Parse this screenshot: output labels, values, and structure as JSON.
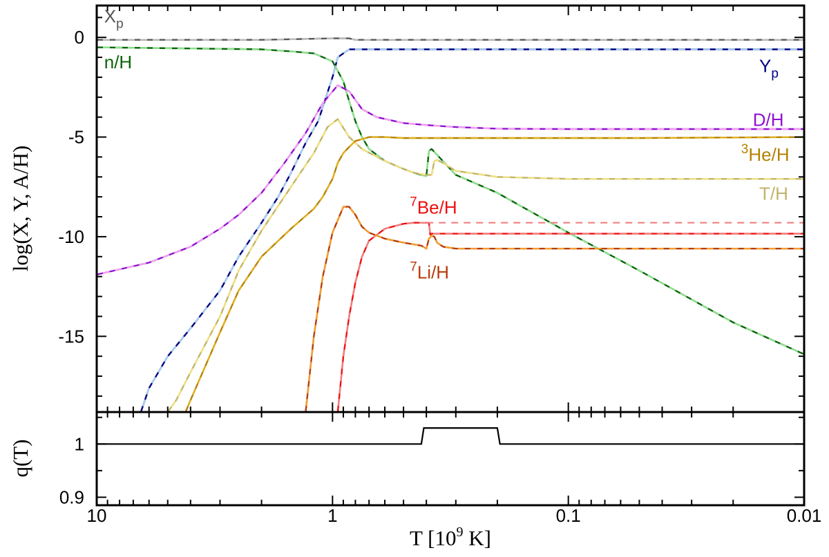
{
  "chart_data": [
    {
      "type": "line",
      "panel": "abundances",
      "ylabel": "log(X, Y, A/H)",
      "xscale": "log",
      "xlim": [
        10,
        0.01
      ],
      "ylim": [
        -18.8,
        1.6
      ],
      "x_ticks": [
        10,
        1,
        0.1,
        0.01
      ],
      "x_tick_labels": [
        "10",
        "1",
        "0.1",
        "0.01"
      ],
      "y_ticks": [
        0,
        -5,
        -10,
        -15
      ],
      "y_tick_labels": [
        "0",
        "-5",
        "-10",
        "-15"
      ],
      "grid": false,
      "series": [
        {
          "name": "X_p",
          "label": "X",
          "label_sub": "p",
          "color": "#555555",
          "ref_color": "#bbbbbb",
          "T": [
            10,
            2,
            1,
            0.85,
            0.8,
            0.01
          ],
          "val": [
            -0.12,
            -0.12,
            -0.05,
            -0.05,
            -0.12,
            -0.12
          ]
        },
        {
          "name": "Y_p",
          "label": "Y",
          "label_sub": "p",
          "color": "#000080",
          "ref_color": "#a8d0f0",
          "T": [
            6.5,
            6,
            5,
            4,
            3,
            2.5,
            2,
            1.7,
            1.5,
            1.3,
            1.15,
            1.0,
            0.95,
            0.9,
            0.85,
            0.8,
            0.01
          ],
          "val": [
            -18.8,
            -17.6,
            -16.0,
            -14.6,
            -12.7,
            -11.0,
            -9.3,
            -8.0,
            -6.8,
            -5.3,
            -4.2,
            -2.0,
            -1.0,
            -0.8,
            -0.6,
            -0.6,
            -0.6
          ]
        },
        {
          "name": "n/H",
          "label": "n/H",
          "color": "#0a640a",
          "ref_color": "#90e090",
          "T": [
            10,
            2,
            1.5,
            1.2,
            1.0,
            0.9,
            0.85,
            0.8,
            0.75,
            0.7,
            0.6,
            0.5,
            0.45,
            0.42,
            0.4,
            0.39,
            0.385,
            0.38,
            0.36,
            0.3,
            0.2,
            0.1,
            0.05,
            0.02,
            0.01
          ],
          "val": [
            -0.5,
            -0.6,
            -0.7,
            -0.8,
            -1.2,
            -2.2,
            -3.2,
            -4.2,
            -5.0,
            -5.6,
            -6.2,
            -6.6,
            -6.8,
            -6.9,
            -6.95,
            -5.7,
            -5.65,
            -5.6,
            -5.9,
            -6.9,
            -7.8,
            -9.8,
            -11.7,
            -14.3,
            -15.9
          ]
        },
        {
          "name": "D/H",
          "label": "D/H",
          "color": "#9010d0",
          "ref_color": "#f0a0f0",
          "T": [
            10,
            6,
            4,
            3,
            2.5,
            2,
            1.6,
            1.3,
            1.1,
            0.95,
            0.85,
            0.75,
            0.65,
            0.5,
            0.4,
            0.3,
            0.2,
            0.1,
            0.01
          ],
          "val": [
            -11.9,
            -11.3,
            -10.5,
            -9.6,
            -8.9,
            -7.8,
            -6.3,
            -4.8,
            -3.3,
            -2.4,
            -2.7,
            -3.6,
            -4.0,
            -4.3,
            -4.4,
            -4.5,
            -4.58,
            -4.6,
            -4.6
          ]
        },
        {
          "name": "T/H",
          "label": "T/H",
          "color": "#c0b468",
          "ref_color": "#f0e080",
          "T": [
            5,
            4.6,
            4,
            3,
            2.5,
            2,
            1.5,
            1.2,
            1.05,
            0.95,
            0.85,
            0.75,
            0.6,
            0.5,
            0.45,
            0.4,
            0.38,
            0.37,
            0.36,
            0.34,
            0.3,
            0.2,
            0.1,
            0.01
          ],
          "val": [
            -18.8,
            -18.2,
            -16.8,
            -14.0,
            -11.7,
            -9.7,
            -7.5,
            -5.8,
            -4.5,
            -4.1,
            -5.0,
            -5.6,
            -6.2,
            -6.6,
            -6.8,
            -6.9,
            -6.9,
            -6.2,
            -6.15,
            -6.3,
            -6.7,
            -7.0,
            -7.1,
            -7.1
          ]
        },
        {
          "name": "3He/H",
          "label": "He/H",
          "label_sup": "3",
          "color": "#b48200",
          "ref_color": "#e0b020",
          "T": [
            4.2,
            4,
            3,
            2.5,
            2,
            1.5,
            1.2,
            1.1,
            1.0,
            0.95,
            0.9,
            0.85,
            0.8,
            0.7,
            0.6,
            0.5,
            0.4,
            0.3,
            0.2,
            0.1,
            0.05,
            0.01
          ],
          "val": [
            -18.8,
            -18.2,
            -14.8,
            -12.7,
            -11.0,
            -9.6,
            -8.6,
            -8.0,
            -7.1,
            -6.3,
            -5.8,
            -5.5,
            -5.2,
            -5.0,
            -5.0,
            -5.05,
            -5.05,
            -5.05,
            -5.05,
            -5.05,
            -5.05,
            -5.0
          ]
        },
        {
          "name": "7Be/H",
          "label": "Be/H",
          "label_sup": "7",
          "color": "#ee1010",
          "ref_color": "#f08080",
          "T": [
            0.95,
            0.9,
            0.85,
            0.8,
            0.75,
            0.7,
            0.6,
            0.5,
            0.45,
            0.4,
            0.39,
            0.385,
            0.38,
            0.35,
            0.3,
            0.2,
            0.1,
            0.05,
            0.01
          ],
          "val": [
            -18.8,
            -16.0,
            -14.0,
            -12.3,
            -11.0,
            -10.2,
            -9.6,
            -9.35,
            -9.3,
            -9.3,
            -9.3,
            -9.9,
            -9.85,
            -9.85,
            -9.85,
            -9.85,
            -9.85,
            -9.85,
            -9.85
          ]
        },
        {
          "name": "7Be/H-ref",
          "label": "",
          "color": "#f08080",
          "dashed_only": true,
          "T": [
            0.4,
            0.01
          ],
          "val": [
            -9.3,
            -9.3
          ]
        },
        {
          "name": "7Li/H",
          "label": "Li/H",
          "label_sup": "7",
          "color": "#b83c0a",
          "ref_color": "#f0a030",
          "T": [
            1.3,
            1.2,
            1.1,
            1.0,
            0.9,
            0.85,
            0.8,
            0.75,
            0.7,
            0.6,
            0.5,
            0.42,
            0.4,
            0.39,
            0.38,
            0.37,
            0.36,
            0.34,
            0.3,
            0.2,
            0.1,
            0.01
          ],
          "val": [
            -18.8,
            -15.0,
            -12.0,
            -9.8,
            -8.5,
            -8.5,
            -8.9,
            -9.5,
            -9.8,
            -10.1,
            -10.3,
            -10.45,
            -10.6,
            -10.1,
            -9.95,
            -10.0,
            -10.3,
            -10.5,
            -10.6,
            -10.6,
            -10.6,
            -10.6
          ]
        }
      ],
      "annotations": [
        {
          "series": "X_p",
          "text": "X",
          "sub": "p",
          "color": "#555555",
          "at_T": 9.3,
          "at_val": 0.75,
          "anchor": "start"
        },
        {
          "series": "n/H",
          "text": "n/H",
          "color": "#0a640a",
          "at_T": 9.3,
          "at_val": -1.55,
          "anchor": "start"
        },
        {
          "series": "Y_p",
          "text": "Y",
          "sub": "p",
          "color": "#000080",
          "at_T": 0.0155,
          "at_val": -1.75,
          "anchor": "start"
        },
        {
          "series": "D/H",
          "text": "D/H",
          "color": "#9010d0",
          "at_T": 0.0165,
          "at_val": -4.45,
          "anchor": "start"
        },
        {
          "series": "3He/H",
          "text": "He/H",
          "sup": "3",
          "color": "#b48200",
          "at_T": 0.0185,
          "at_val": -6.2,
          "anchor": "start"
        },
        {
          "series": "T/H",
          "text": "T/H",
          "color": "#c0b468",
          "at_T": 0.0155,
          "at_val": -8.15,
          "anchor": "start"
        },
        {
          "series": "7Be/H",
          "text": "Be/H",
          "sup": "7",
          "color": "#ee1010",
          "at_T": 0.47,
          "at_val": -8.85,
          "anchor": "start"
        },
        {
          "series": "7Li/H",
          "text": "Li/H",
          "sup": "7",
          "color": "#b83c0a",
          "at_T": 0.47,
          "at_val": -12.1,
          "anchor": "start"
        }
      ]
    },
    {
      "type": "line",
      "panel": "ratio",
      "xlabel": "T [10",
      "xlabel_sup": "9",
      "xlabel_tail": " K]",
      "ylabel": "q(T)",
      "xscale": "log",
      "xlim": [
        10,
        0.01
      ],
      "ylim": [
        0.885,
        1.06
      ],
      "y_ticks": [
        1,
        0.9
      ],
      "y_tick_labels": [
        "1",
        "0.9"
      ],
      "series": [
        {
          "name": "q(T)",
          "color": "#000000",
          "T": [
            10,
            0.42,
            0.41,
            0.2,
            0.195,
            0.01
          ],
          "val": [
            1.0,
            1.0,
            1.03,
            1.03,
            1.0,
            1.0
          ]
        }
      ]
    }
  ]
}
